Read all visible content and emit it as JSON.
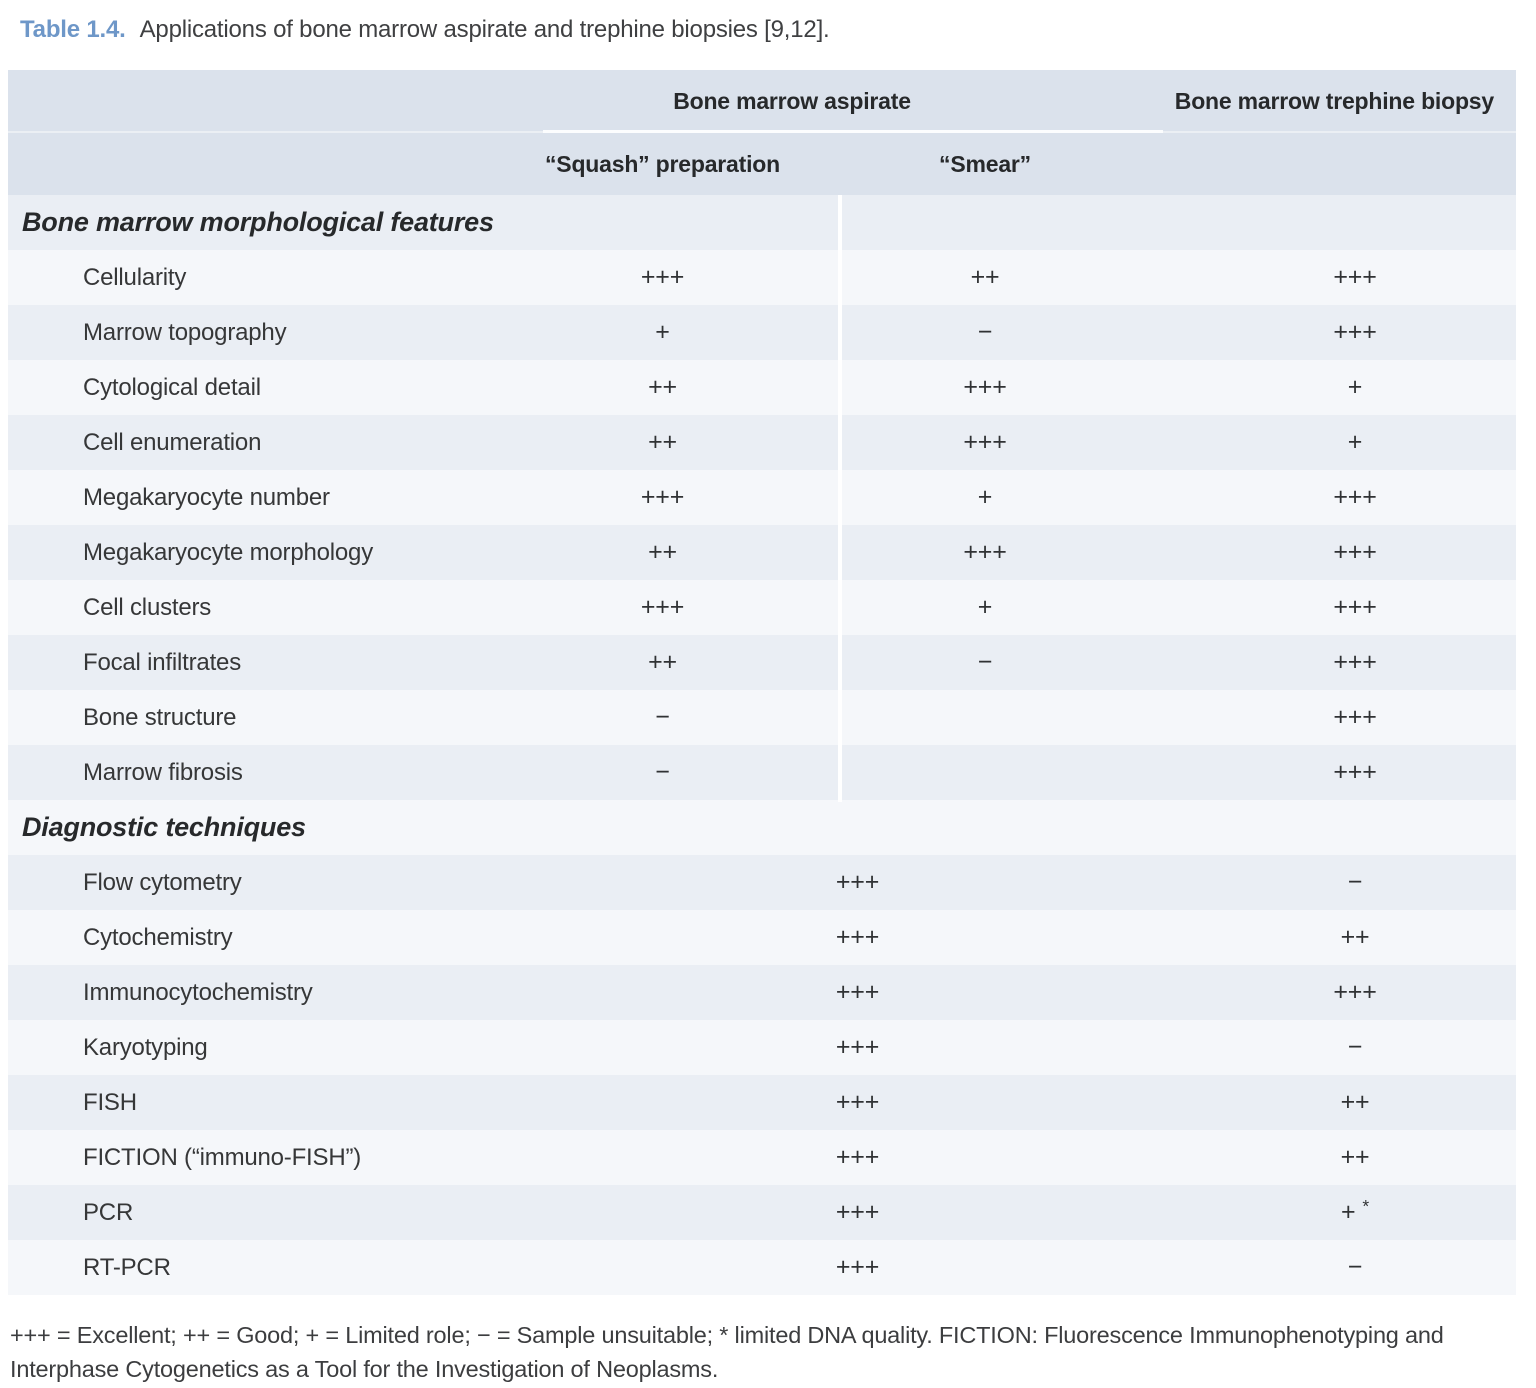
{
  "caption": {
    "label": "Table 1.4.",
    "text": "Applications of bone marrow aspirate and trephine biopsies [9,12]."
  },
  "table": {
    "group_headers": {
      "aspirate": "Bone marrow aspirate",
      "trephine": "Bone marrow trephine biopsy"
    },
    "sub_headers": {
      "squash": "“Squash” preparation",
      "smear": "“Smear”"
    },
    "sections": [
      {
        "heading": "Bone marrow morphological features",
        "merged": false,
        "rows": [
          {
            "label": "Cellularity",
            "squash": "+++",
            "smear": "++",
            "trephine": "+++"
          },
          {
            "label": "Marrow topography",
            "squash": "+",
            "smear": "−",
            "trephine": "+++"
          },
          {
            "label": "Cytological detail",
            "squash": "++",
            "smear": "+++",
            "trephine": "+"
          },
          {
            "label": "Cell enumeration",
            "squash": "++",
            "smear": "+++",
            "trephine": "+"
          },
          {
            "label": "Megakaryocyte number",
            "squash": "+++",
            "smear": "+",
            "trephine": "+++"
          },
          {
            "label": "Megakaryocyte morphology",
            "squash": "++",
            "smear": "+++",
            "trephine": "+++"
          },
          {
            "label": "Cell clusters",
            "squash": "+++",
            "smear": "+",
            "trephine": "+++"
          },
          {
            "label": "Focal infiltrates",
            "squash": "++",
            "smear": "−",
            "trephine": "+++"
          },
          {
            "label": "Bone structure",
            "squash": "−",
            "smear": "",
            "trephine": "+++"
          },
          {
            "label": "Marrow fibrosis",
            "squash": "−",
            "smear": "",
            "trephine": "+++"
          }
        ]
      },
      {
        "heading": "Diagnostic techniques",
        "merged": true,
        "rows": [
          {
            "label": "Flow cytometry",
            "aspirate": "+++",
            "trephine": "−"
          },
          {
            "label": "Cytochemistry",
            "aspirate": "+++",
            "trephine": "++"
          },
          {
            "label": "Immunocytochemistry",
            "aspirate": "+++",
            "trephine": "+++"
          },
          {
            "label": "Karyotyping",
            "aspirate": "+++",
            "trephine": "−"
          },
          {
            "label": "FISH",
            "aspirate": "+++",
            "trephine": "++"
          },
          {
            "label": "FICTION (“immuno-FISH”)",
            "aspirate": "+++",
            "trephine": "++"
          },
          {
            "label": "PCR",
            "aspirate": "+++",
            "trephine": "+",
            "trephine_note": "*"
          },
          {
            "label": "RT-PCR",
            "aspirate": "+++",
            "trephine": "−"
          }
        ]
      }
    ]
  },
  "footnote": {
    "lines": [
      "+++ = Excellent; ++ = Good; + = Limited role; − = Sample unsuitable; * limited DNA quality. FICTION: Fluorescence Immunophenotyping and",
      "Interphase Cytogenetics as a Tool for the Investigation of Neoplasms."
    ]
  },
  "colors": {
    "caption_accent": "#6e97c8",
    "header_bg": "#dbe2ec",
    "row_tint": "#eaeef4",
    "row_light": "#f5f7fa",
    "text_dark": "#303234"
  }
}
